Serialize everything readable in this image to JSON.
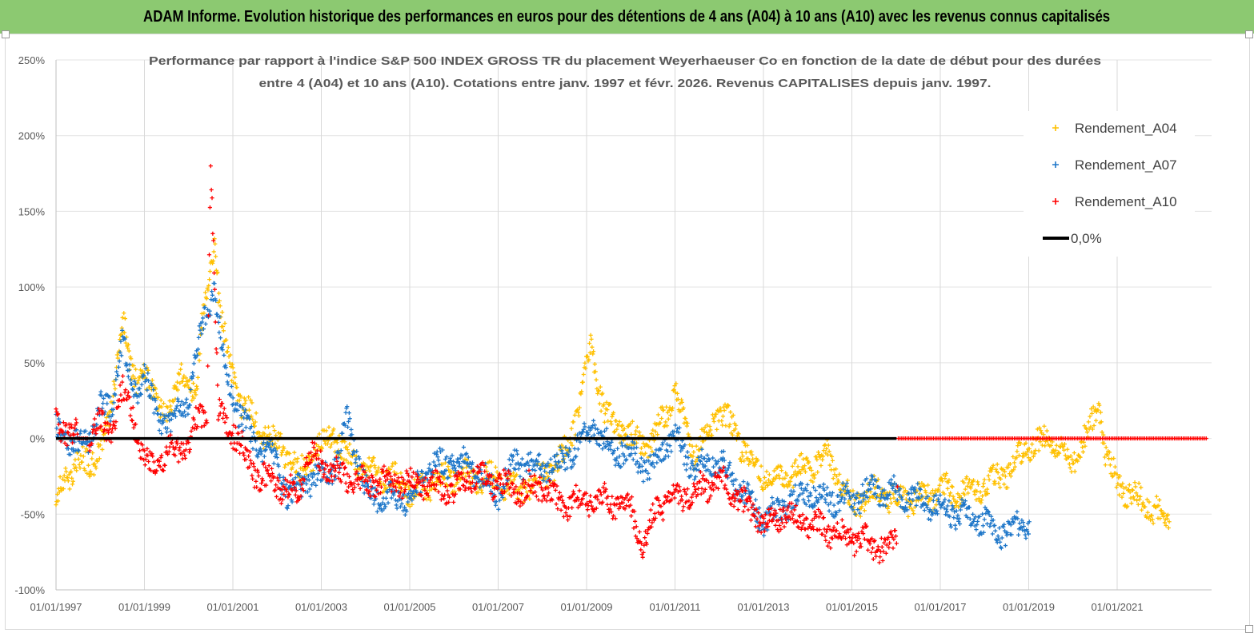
{
  "banner": {
    "title": "ADAM Informe. Evolution historique des performances en euros pour des détentions de 4 ans (A04) à 10 ans (A10) avec les revenus connus capitalisés",
    "color": "#8cc971"
  },
  "chart_data": {
    "type": "scatter",
    "title_line1": "Performance par rapport à l'indice S&P 500 INDEX GROSS TR  du placement Weyerhaeuser Co en fonction de la date de début pour des durées",
    "title_line2": "entre 4 (A04) et 10 ans (A10). Cotations entre janv. 1997 et févr. 2026. Revenus CAPITALISES depuis janv. 1997.",
    "y_ticks": [
      "250%",
      "200%",
      "150%",
      "100%",
      "50%",
      "0%",
      "-50%",
      "-100%"
    ],
    "x_ticks": [
      "01/01/1997",
      "01/01/1999",
      "01/01/2001",
      "01/01/2003",
      "01/01/2005",
      "01/01/2007",
      "01/01/2009",
      "01/01/2011",
      "01/01/2013",
      "01/01/2015",
      "01/01/2017",
      "01/01/2019",
      "01/01/2021"
    ],
    "ylim": [
      -100,
      250
    ],
    "grid": "vertical",
    "legend_position": "top-right",
    "series": [
      {
        "name": "Rendement_A04",
        "color": "#ffc000",
        "marker": "+",
        "points": [
          [
            "1997-01-01",
            -40
          ],
          [
            "1997-04-01",
            -25
          ],
          [
            "1997-07-01",
            -15
          ],
          [
            "1997-10-01",
            -18
          ],
          [
            "1998-01-01",
            -5
          ],
          [
            "1998-04-01",
            15
          ],
          [
            "1998-06-01",
            60
          ],
          [
            "1998-07-15",
            82
          ],
          [
            "1998-09-01",
            45
          ],
          [
            "1998-11-01",
            35
          ],
          [
            "1999-01-01",
            48
          ],
          [
            "1999-03-01",
            30
          ],
          [
            "1999-05-01",
            20
          ],
          [
            "1999-07-01",
            18
          ],
          [
            "1999-09-01",
            25
          ],
          [
            "1999-11-01",
            40
          ],
          [
            "2000-01-01",
            35
          ],
          [
            "2000-03-01",
            30
          ],
          [
            "2000-05-01",
            80
          ],
          [
            "2000-07-01",
            110
          ],
          [
            "2000-08-01",
            135
          ],
          [
            "2000-09-01",
            100
          ],
          [
            "2000-10-15",
            70
          ],
          [
            "2001-01-01",
            40
          ],
          [
            "2001-03-01",
            25
          ],
          [
            "2001-06-01",
            15
          ],
          [
            "2001-09-01",
            5
          ],
          [
            "2002-01-01",
            -3
          ],
          [
            "2002-04-01",
            -10
          ],
          [
            "2002-07-01",
            -25
          ],
          [
            "2002-10-01",
            -12
          ],
          [
            "2003-01-01",
            -5
          ],
          [
            "2003-04-01",
            5
          ],
          [
            "2003-07-01",
            -10
          ],
          [
            "2003-10-01",
            -15
          ],
          [
            "2004-01-01",
            -20
          ],
          [
            "2004-06-01",
            -25
          ],
          [
            "2004-12-01",
            -30
          ],
          [
            "2005-01-01",
            -38
          ],
          [
            "2005-06-01",
            -30
          ],
          [
            "2006-01-01",
            -25
          ],
          [
            "2006-06-01",
            -25
          ],
          [
            "2007-01-01",
            -28
          ],
          [
            "2007-06-01",
            -35
          ],
          [
            "2008-01-01",
            -25
          ],
          [
            "2008-06-01",
            -15
          ],
          [
            "2008-09-01",
            5
          ],
          [
            "2009-01-01",
            45
          ],
          [
            "2009-02-01",
            60
          ],
          [
            "2009-06-01",
            15
          ],
          [
            "2010-01-01",
            0
          ],
          [
            "2010-06-01",
            -5
          ],
          [
            "2010-10-01",
            15
          ],
          [
            "2011-01-01",
            30
          ],
          [
            "2011-06-01",
            -10
          ],
          [
            "2011-10-01",
            5
          ],
          [
            "2012-01-01",
            20
          ],
          [
            "2012-06-01",
            0
          ],
          [
            "2012-10-01",
            -15
          ],
          [
            "2013-01-01",
            -25
          ],
          [
            "2013-06-01",
            -25
          ],
          [
            "2014-01-01",
            -20
          ],
          [
            "2014-06-01",
            -10
          ],
          [
            "2015-01-01",
            -45
          ],
          [
            "2015-06-01",
            -35
          ],
          [
            "2016-01-01",
            -40
          ],
          [
            "2016-06-01",
            -40
          ],
          [
            "2017-01-01",
            -35
          ],
          [
            "2017-06-01",
            -35
          ],
          [
            "2018-01-01",
            -30
          ],
          [
            "2018-06-01",
            -25
          ],
          [
            "2019-01-01",
            -5
          ],
          [
            "2019-06-01",
            -2
          ],
          [
            "2020-01-01",
            -15
          ],
          [
            "2020-06-01",
            10
          ],
          [
            "2020-08-01",
            20
          ],
          [
            "2020-10-01",
            -15
          ],
          [
            "2021-01-01",
            -30
          ],
          [
            "2021-06-01",
            -40
          ],
          [
            "2022-01-01",
            -50
          ],
          [
            "2022-03-01",
            -55
          ]
        ]
      },
      {
        "name": "Rendement_A07",
        "color": "#1f77c9",
        "marker": "+",
        "points": [
          [
            "1997-01-01",
            5
          ],
          [
            "1997-04-01",
            0
          ],
          [
            "1997-07-01",
            -5
          ],
          [
            "1997-10-01",
            0
          ],
          [
            "1998-01-01",
            20
          ],
          [
            "1998-04-01",
            20
          ],
          [
            "1998-07-01",
            65
          ],
          [
            "1998-09-01",
            40
          ],
          [
            "1998-11-01",
            30
          ],
          [
            "1999-01-01",
            45
          ],
          [
            "1999-04-01",
            15
          ],
          [
            "1999-08-01",
            10
          ],
          [
            "2000-01-01",
            25
          ],
          [
            "2000-03-01",
            55
          ],
          [
            "2000-06-01",
            85
          ],
          [
            "2000-08-01",
            100
          ],
          [
            "2000-10-01",
            60
          ],
          [
            "2001-01-01",
            25
          ],
          [
            "2001-04-01",
            10
          ],
          [
            "2001-07-01",
            -5
          ],
          [
            "2002-01-01",
            -15
          ],
          [
            "2002-04-01",
            -40
          ],
          [
            "2002-08-01",
            -30
          ],
          [
            "2003-01-01",
            -25
          ],
          [
            "2003-06-01",
            -15
          ],
          [
            "2003-08-01",
            15
          ],
          [
            "2004-01-01",
            -35
          ],
          [
            "2004-06-01",
            -40
          ],
          [
            "2005-01-01",
            -40
          ],
          [
            "2005-06-01",
            -20
          ],
          [
            "2006-01-01",
            -15
          ],
          [
            "2006-06-01",
            -20
          ],
          [
            "2007-01-01",
            -35
          ],
          [
            "2007-06-01",
            -15
          ],
          [
            "2008-01-01",
            -20
          ],
          [
            "2008-06-01",
            -15
          ],
          [
            "2009-01-01",
            0
          ],
          [
            "2009-03-01",
            10
          ],
          [
            "2009-06-01",
            -5
          ],
          [
            "2010-01-01",
            -10
          ],
          [
            "2010-06-01",
            -20
          ],
          [
            "2010-10-01",
            -5
          ],
          [
            "2011-01-01",
            0
          ],
          [
            "2011-06-01",
            -20
          ],
          [
            "2012-01-01",
            -15
          ],
          [
            "2012-06-01",
            -30
          ],
          [
            "2013-01-01",
            -55
          ],
          [
            "2013-06-01",
            -45
          ],
          [
            "2014-01-01",
            -35
          ],
          [
            "2014-06-01",
            -40
          ],
          [
            "2015-01-01",
            -40
          ],
          [
            "2015-06-01",
            -35
          ],
          [
            "2016-01-01",
            -35
          ],
          [
            "2016-06-01",
            -40
          ],
          [
            "2017-01-01",
            -45
          ],
          [
            "2017-06-01",
            -50
          ],
          [
            "2018-01-01",
            -55
          ],
          [
            "2018-06-01",
            -62
          ],
          [
            "2019-01-01",
            -55
          ]
        ]
      },
      {
        "name": "Rendement_A10",
        "color": "#ff0000",
        "marker": "+",
        "points": [
          [
            "1997-01-01",
            10
          ],
          [
            "1997-04-01",
            5
          ],
          [
            "1997-07-01",
            0
          ],
          [
            "1997-10-01",
            0
          ],
          [
            "1998-01-01",
            10
          ],
          [
            "1998-04-01",
            5
          ],
          [
            "1998-07-01",
            30
          ],
          [
            "1998-09-01",
            25
          ],
          [
            "1999-01-01",
            -15
          ],
          [
            "1999-04-01",
            -20
          ],
          [
            "1999-07-01",
            -10
          ],
          [
            "2000-01-01",
            -5
          ],
          [
            "2000-03-01",
            10
          ],
          [
            "2000-06-01",
            20
          ],
          [
            "2000-07-01",
            187
          ],
          [
            "2000-09-01",
            15
          ],
          [
            "2001-01-01",
            5
          ],
          [
            "2001-04-01",
            -10
          ],
          [
            "2001-08-01",
            -25
          ],
          [
            "2002-01-01",
            -30
          ],
          [
            "2002-06-01",
            -38
          ],
          [
            "2002-10-01",
            -10
          ],
          [
            "2003-01-01",
            -15
          ],
          [
            "2003-06-01",
            -25
          ],
          [
            "2004-01-01",
            -30
          ],
          [
            "2004-06-01",
            -28
          ],
          [
            "2005-01-01",
            -30
          ],
          [
            "2005-06-01",
            -30
          ],
          [
            "2006-01-01",
            -35
          ],
          [
            "2006-06-01",
            -25
          ],
          [
            "2007-01-01",
            -30
          ],
          [
            "2007-06-01",
            -35
          ],
          [
            "2008-01-01",
            -30
          ],
          [
            "2008-06-01",
            -45
          ],
          [
            "2009-01-01",
            -40
          ],
          [
            "2009-06-01",
            -40
          ],
          [
            "2010-01-01",
            -45
          ],
          [
            "2010-03-01",
            -60
          ],
          [
            "2010-04-01",
            -75
          ],
          [
            "2010-08-01",
            -45
          ],
          [
            "2011-01-01",
            -40
          ],
          [
            "2011-06-01",
            -35
          ],
          [
            "2012-01-01",
            -28
          ],
          [
            "2012-06-01",
            -40
          ],
          [
            "2013-01-01",
            -55
          ],
          [
            "2013-06-01",
            -50
          ],
          [
            "2014-01-01",
            -55
          ],
          [
            "2014-06-01",
            -60
          ],
          [
            "2015-01-01",
            -65
          ],
          [
            "2015-06-01",
            -70
          ],
          [
            "2015-10-01",
            -72
          ],
          [
            "2016-01-01",
            -65
          ],
          [
            "2016-01-15",
            0
          ],
          [
            "2022-12-31",
            0
          ]
        ]
      },
      {
        "name": "0,0%",
        "color": "#000000",
        "type": "line",
        "points": [
          [
            "1997-01-01",
            0
          ],
          [
            "2016-01-01",
            0
          ]
        ]
      }
    ]
  }
}
